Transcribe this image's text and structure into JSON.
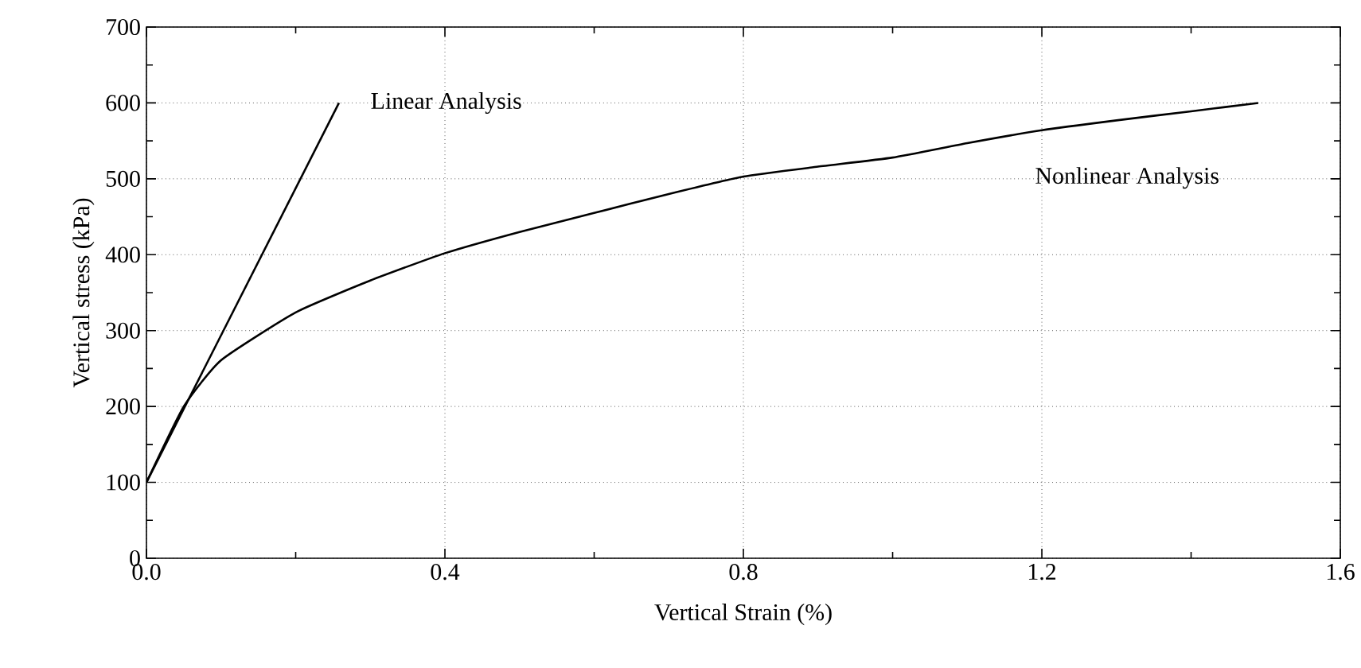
{
  "chart_data": {
    "type": "line",
    "xlabel": "Vertical Strain (%)",
    "ylabel": "Vertical stress (kPa)",
    "xlim": [
      0,
      1.6
    ],
    "ylim": [
      0,
      700
    ],
    "xticks": [
      {
        "value": 0,
        "label": "0.0"
      },
      0.4,
      0.8,
      1.2,
      1.6
    ],
    "yticks": [
      0,
      100,
      200,
      300,
      400,
      500,
      600,
      700
    ],
    "grid": true,
    "marker": "none",
    "line_style": "solid",
    "series": [
      {
        "color": "#000000",
        "x": [
          0,
          0.258
        ],
        "values": [
          100,
          600
        ]
      },
      {
        "color": "#000000",
        "x": [
          0,
          0.05,
          0.1,
          0.2,
          0.3,
          0.4,
          0.5,
          0.6,
          0.7,
          0.8,
          0.9,
          1.0,
          1.1,
          1.2,
          1.3,
          1.4,
          1.49
        ],
        "values": [
          100,
          200,
          261,
          324,
          366,
          402,
          430,
          455,
          480,
          503,
          516,
          528,
          547,
          564,
          577,
          589,
          600
        ]
      }
    ],
    "annotations": [
      "Linear Analysis",
      "Nonlinear Analysis"
    ]
  }
}
